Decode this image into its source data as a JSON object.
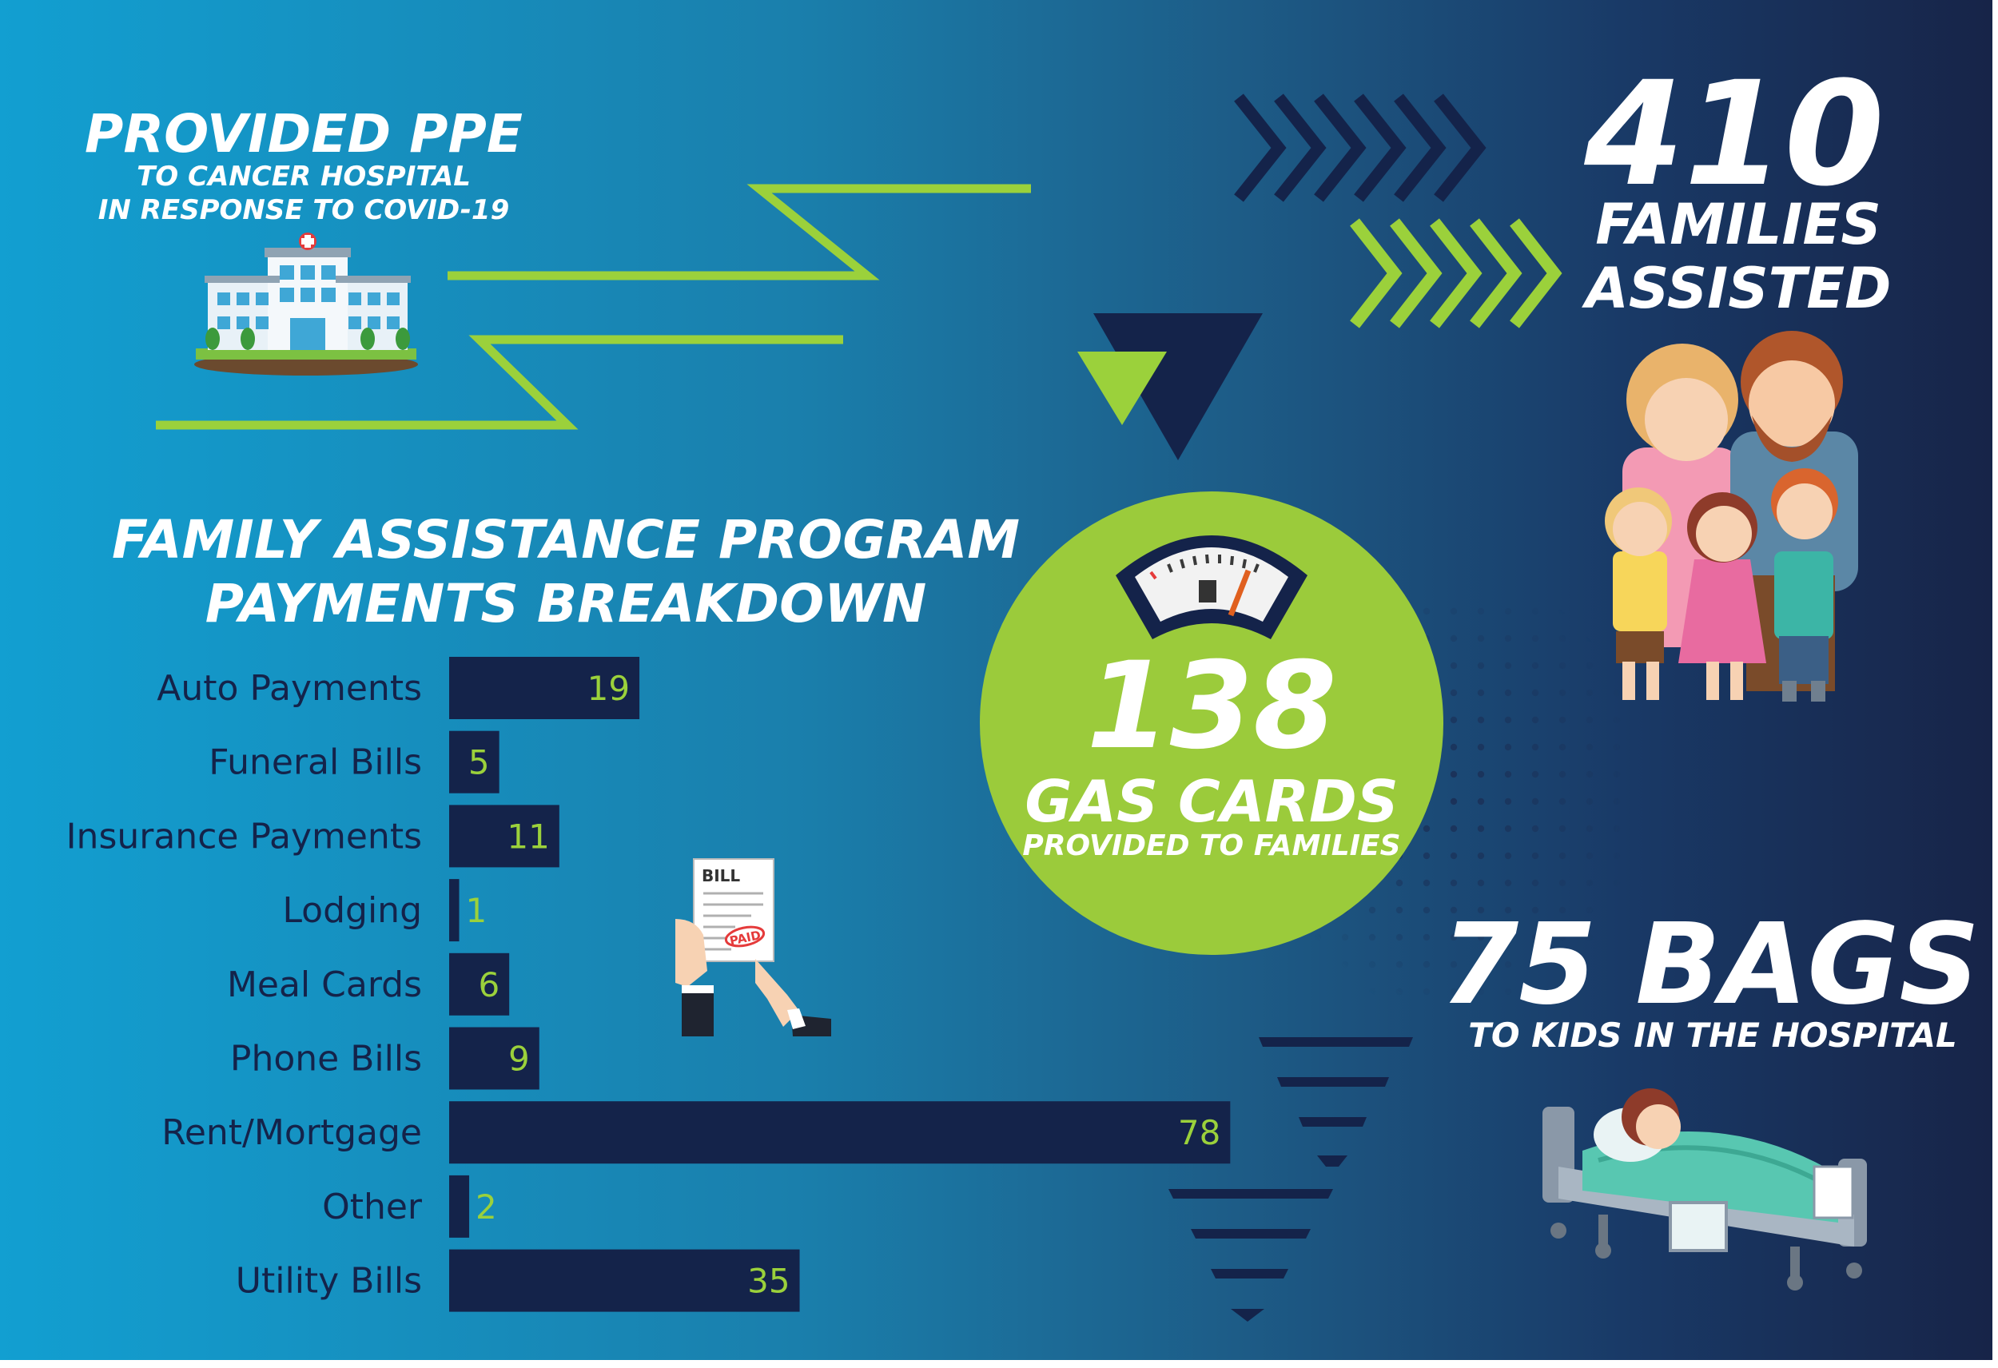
{
  "ppe": {
    "title": "PROVIDED PPE",
    "line1": "TO CANCER HOSPITAL",
    "line2": "IN RESPONSE TO COVID-19"
  },
  "families": {
    "number": "410",
    "line1": "FAMILIES",
    "line2": "ASSISTED"
  },
  "gas": {
    "number": "138",
    "line1": "GAS CARDS",
    "line2": "PROVIDED TO FAMILIES"
  },
  "bags": {
    "number": "75 BAGS",
    "line1": "TO KIDS IN THE HOSPITAL"
  },
  "bill_icon": {
    "title": "BILL",
    "stamp": "PAID"
  },
  "chart_data": {
    "type": "bar",
    "orientation": "horizontal",
    "title_line1": "FAMILY ASSISTANCE PROGRAM",
    "title_line2": "PAYMENTS BREAKDOWN",
    "categories": [
      "Auto Payments",
      "Funeral Bills",
      "Insurance Payments",
      "Lodging",
      "Meal Cards",
      "Phone Bills",
      "Rent/Mortgage",
      "Other",
      "Utility Bills"
    ],
    "values": [
      19,
      5,
      11,
      1,
      6,
      9,
      78,
      2,
      35
    ],
    "data_labels": [
      "19",
      "5",
      "11",
      "1",
      "6",
      "9",
      "78",
      "2",
      "35"
    ],
    "bar_color": "#14234a",
    "label_color": "#9bd13b",
    "grid": false
  },
  "colors": {
    "accent_green": "#9bd13b",
    "navy": "#14234a",
    "background_left": "#129fd1",
    "background_right": "#172448"
  }
}
